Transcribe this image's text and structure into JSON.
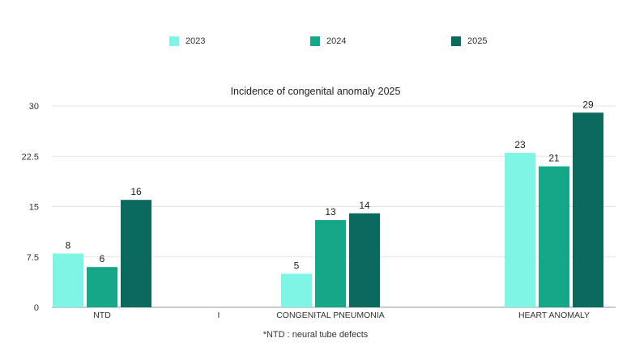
{
  "chart_data": {
    "type": "bar",
    "title": "Incidence of congenital anomaly 2025",
    "categories": [
      "NTD",
      "I",
      "CONGENITAL PNEUMONIA",
      "HEART ANOMALY"
    ],
    "series": [
      {
        "name": "2023",
        "values": [
          8,
          null,
          5,
          23
        ],
        "color": "#7ff5e6"
      },
      {
        "name": "2024",
        "values": [
          6,
          null,
          13,
          21
        ],
        "color": "#14a889"
      },
      {
        "name": "2025",
        "values": [
          16,
          null,
          14,
          29
        ],
        "color": "#0b6a5e"
      }
    ],
    "ylim": [
      0,
      30
    ],
    "yticks": [
      "0",
      "7.5",
      "15",
      "22.5",
      "30"
    ],
    "ytick_values": [
      0,
      7.5,
      15,
      22.5,
      30
    ],
    "grid": true,
    "legend_position": "top-center",
    "footnote": "*NTD : neural tube defects",
    "xlabel": "",
    "ylabel": ""
  }
}
